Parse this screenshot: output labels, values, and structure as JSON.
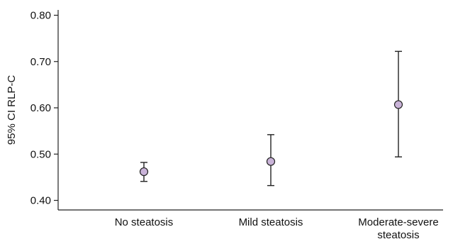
{
  "chart_data": {
    "type": "scatter",
    "title": "",
    "xlabel": "",
    "ylabel": "95% CI RLP-C",
    "ylim": [
      0.38,
      0.82
    ],
    "yticks": [
      "0.40",
      "0.50",
      "0.60",
      "0.70",
      "0.80"
    ],
    "categories": [
      [
        "No steatosis"
      ],
      [
        "Mild steatosis"
      ],
      [
        "Moderate-severe",
        "steatosis"
      ]
    ],
    "series": [
      {
        "values": [
          0.462,
          0.484,
          0.607
        ],
        "lower": [
          0.441,
          0.432,
          0.494
        ],
        "upper": [
          0.482,
          0.542,
          0.722
        ]
      }
    ],
    "grid": false,
    "legend": "none"
  },
  "colors": {
    "marker_fill": "#c9b3d8",
    "marker_stroke": "#222222",
    "axis": "#222222"
  }
}
